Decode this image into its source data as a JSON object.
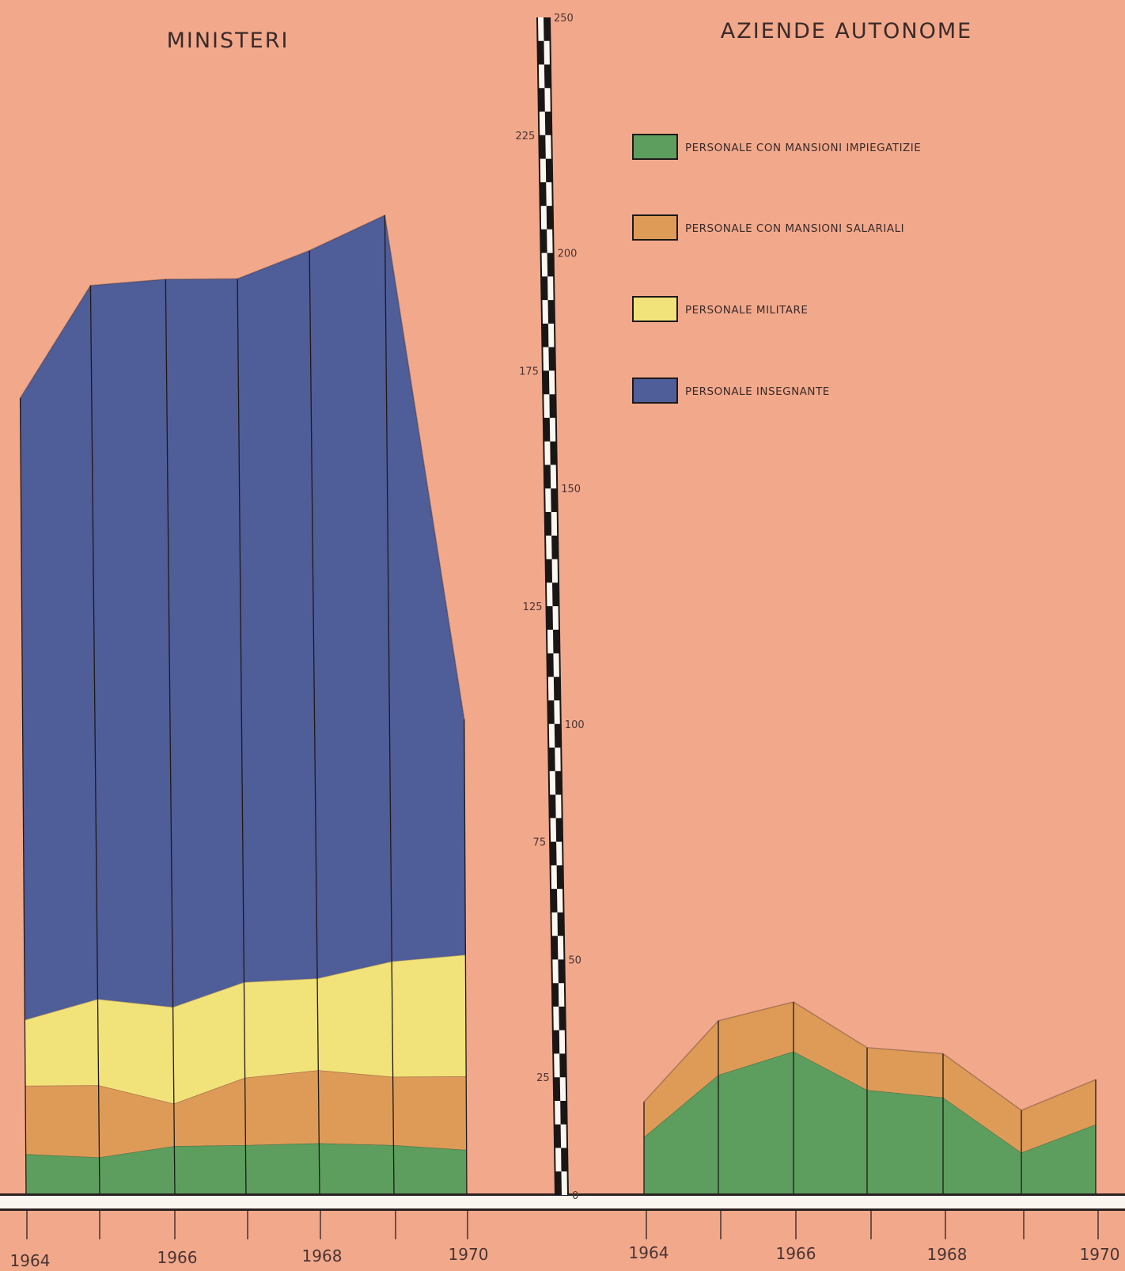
{
  "chart_data": [
    {
      "type": "area",
      "title": "MINISTERI",
      "x": [
        1964,
        1965,
        1966,
        1967,
        1968,
        1969,
        1970
      ],
      "ylim": [
        0,
        250
      ],
      "stacked": true,
      "series": [
        {
          "key": "impiegatizie",
          "name": "PERSONALE CON MANSIONI IMPIEGATIZIE",
          "color": "#5d9e5e",
          "values": [
            8.7,
            8,
            10.4,
            10.6,
            11,
            10.6,
            9.6
          ]
        },
        {
          "key": "salariali",
          "name": "PERSONALE CON MANSIONI SALARIALI",
          "color": "#de9b58",
          "values": [
            14.5,
            15.3,
            9,
            14.3,
            15.5,
            14.5,
            15.6
          ]
        },
        {
          "key": "militare",
          "name": "PERSONALE MILITARE",
          "color": "#f2e27a",
          "values": [
            14,
            18.3,
            20.5,
            20.3,
            19.5,
            24.5,
            25.8
          ]
        },
        {
          "key": "insegnante",
          "name": "PERSONALE INSEGNANTE",
          "color": "#4f5d98",
          "values": [
            132,
            151.5,
            154.5,
            149.3,
            154.5,
            158.4,
            50
          ]
        }
      ]
    },
    {
      "type": "area",
      "title": "AZIENDE AUTONOME",
      "x": [
        1964,
        1965,
        1966,
        1967,
        1968,
        1969,
        1970
      ],
      "ylim": [
        0,
        250
      ],
      "stacked": true,
      "series": [
        {
          "key": "impiegatizie",
          "name": "PERSONALE CON MANSIONI IMPIEGATIZIE",
          "color": "#5d9e5e",
          "values": [
            12.3,
            25.5,
            30.5,
            22.3,
            20.7,
            9,
            15
          ]
        },
        {
          "key": "salariali",
          "name": "PERSONALE CON MANSIONI SALARIALI",
          "color": "#de9b58",
          "values": [
            7.5,
            11.5,
            10.5,
            9,
            9.3,
            9,
            9.5
          ]
        }
      ]
    }
  ],
  "scale": {
    "ticks": [
      0,
      25,
      50,
      75,
      100,
      125,
      150,
      175,
      200,
      225,
      250
    ]
  },
  "x_axis": {
    "left_labels": [
      "1964",
      "1966",
      "1968",
      "1970"
    ],
    "right_labels": [
      "1964",
      "1966",
      "1968",
      "1970"
    ]
  },
  "legend": [
    {
      "label": "PERSONALE CON MANSIONI IMPIEGATIZIE",
      "color": "#5d9e5e"
    },
    {
      "label": "PERSONALE CON MANSIONI SALARIALI",
      "color": "#de9b58"
    },
    {
      "label": "PERSONALE MILITARE",
      "color": "#f2e27a"
    },
    {
      "label": "PERSONALE INSEGNANTE",
      "color": "#4f5d98"
    }
  ]
}
